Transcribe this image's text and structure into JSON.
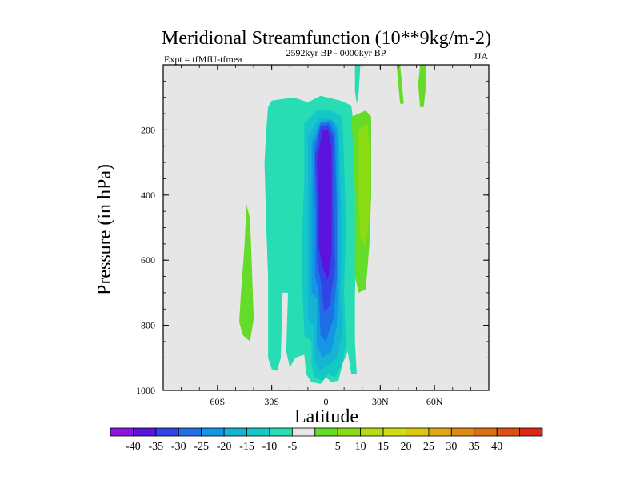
{
  "chart_data": {
    "type": "contour",
    "title": "Meridional Streamfunction (10**9kg/m-2)",
    "left_string": "Expt = tfMfU-tfmea",
    "center_string": "2592kyr BP - 0000kyr BP",
    "right_string": "JJA",
    "xlabel": "Latitude",
    "ylabel": "Pressure (in hPa)",
    "xlim": [
      -90,
      90
    ],
    "ylim": [
      1000,
      0
    ],
    "x_ticks": [
      {
        "value": -60,
        "label": "60S"
      },
      {
        "value": -30,
        "label": "30S"
      },
      {
        "value": 0,
        "label": "0"
      },
      {
        "value": 30,
        "label": "30N"
      },
      {
        "value": 60,
        "label": "60N"
      }
    ],
    "y_ticks": [
      {
        "value": 200,
        "label": "200"
      },
      {
        "value": 400,
        "label": "400"
      },
      {
        "value": 600,
        "label": "600"
      },
      {
        "value": 800,
        "label": "800"
      },
      {
        "value": 1000,
        "label": "1000"
      }
    ],
    "background_color": "#e6e6e6",
    "colorbar": {
      "colors": [
        "#8c14dc",
        "#5a14dc",
        "#3244e6",
        "#1e6ee6",
        "#1496e6",
        "#14b4d2",
        "#14c8c8",
        "#28dcb4",
        "#e6e6e6",
        "#64dc28",
        "#8cdc14",
        "#b4dc14",
        "#d2dc14",
        "#dcc814",
        "#dcaa14",
        "#dc8c14",
        "#dc6e14",
        "#dc5014",
        "#dc2814"
      ],
      "labels": [
        "-40",
        "-35",
        "-30",
        "-25",
        "-20",
        "-15",
        "-10",
        "-5",
        "5",
        "10",
        "15",
        "20",
        "25",
        "30",
        "35",
        "40"
      ]
    },
    "regions": [
      {
        "level": -5,
        "points": [
          [
            -30,
            110
          ],
          [
            -18,
            100
          ],
          [
            -10,
            115
          ],
          [
            -3,
            95
          ],
          [
            8,
            110
          ],
          [
            14,
            125
          ],
          [
            15,
            170
          ],
          [
            16,
            300
          ],
          [
            17,
            500
          ],
          [
            16,
            700
          ],
          [
            16,
            850
          ],
          [
            17,
            950
          ],
          [
            14,
            950
          ],
          [
            12,
            880
          ],
          [
            9,
            920
          ],
          [
            7,
            970
          ],
          [
            3,
            975
          ],
          [
            0,
            960
          ],
          [
            -3,
            980
          ],
          [
            -8,
            975
          ],
          [
            -11,
            950
          ],
          [
            -12,
            890
          ],
          [
            -17,
            900
          ],
          [
            -20,
            930
          ],
          [
            -22,
            880
          ],
          [
            -21,
            700
          ],
          [
            -24,
            700
          ],
          [
            -25,
            900
          ],
          [
            -27,
            940
          ],
          [
            -30,
            935
          ],
          [
            -32,
            900
          ],
          [
            -32,
            650
          ],
          [
            -33,
            500
          ],
          [
            -34,
            300
          ],
          [
            -33,
            200
          ],
          [
            -32,
            130
          ]
        ]
      },
      {
        "level": -5,
        "points": [
          [
            -20,
            250
          ],
          [
            -18,
            210
          ],
          [
            -16,
            240
          ],
          [
            -16,
            400
          ],
          [
            -17,
            500
          ],
          [
            -19,
            480
          ],
          [
            -20,
            380
          ]
        ]
      },
      {
        "level": -5,
        "points": [
          [
            -28,
            350
          ],
          [
            -26,
            320
          ],
          [
            -25,
            420
          ],
          [
            -26,
            520
          ],
          [
            -28,
            500
          ],
          [
            -29,
            420
          ]
        ]
      },
      {
        "level": -5,
        "points": [
          [
            16,
            0
          ],
          [
            19,
            0
          ],
          [
            18,
            90
          ],
          [
            17,
            120
          ],
          [
            16,
            80
          ]
        ]
      },
      {
        "level": -10,
        "points": [
          [
            -12,
            180
          ],
          [
            -5,
            140
          ],
          [
            3,
            140
          ],
          [
            9,
            160
          ],
          [
            10,
            300
          ],
          [
            11,
            500
          ],
          [
            10,
            700
          ],
          [
            11,
            860
          ],
          [
            9,
            920
          ],
          [
            5,
            960
          ],
          [
            1,
            950
          ],
          [
            -2,
            970
          ],
          [
            -6,
            960
          ],
          [
            -8,
            920
          ],
          [
            -8,
            850
          ],
          [
            -12,
            830
          ],
          [
            -13,
            700
          ],
          [
            -13,
            500
          ],
          [
            -12,
            350
          ]
        ]
      },
      {
        "level": -15,
        "points": [
          [
            -10,
            220
          ],
          [
            -4,
            165
          ],
          [
            3,
            165
          ],
          [
            7,
            190
          ],
          [
            8,
            350
          ],
          [
            9,
            550
          ],
          [
            8,
            700
          ],
          [
            9,
            820
          ],
          [
            6,
            900
          ],
          [
            2,
            920
          ],
          [
            -3,
            940
          ],
          [
            -6,
            910
          ],
          [
            -7,
            800
          ],
          [
            -10,
            780
          ],
          [
            -10,
            600
          ],
          [
            -10,
            400
          ]
        ]
      },
      {
        "level": -20,
        "points": [
          [
            -8,
            240
          ],
          [
            -3,
            175
          ],
          [
            3,
            170
          ],
          [
            6,
            200
          ],
          [
            7,
            400
          ],
          [
            7,
            650
          ],
          [
            6,
            800
          ],
          [
            3,
            880
          ],
          [
            -2,
            900
          ],
          [
            -5,
            860
          ],
          [
            -5,
            720
          ],
          [
            -8,
            700
          ],
          [
            -8,
            500
          ]
        ]
      },
      {
        "level": -25,
        "points": [
          [
            -7,
            260
          ],
          [
            -3,
            180
          ],
          [
            2,
            178
          ],
          [
            5,
            210
          ],
          [
            6,
            450
          ],
          [
            6,
            650
          ],
          [
            4,
            780
          ],
          [
            0,
            850
          ],
          [
            -3,
            830
          ],
          [
            -4,
            700
          ],
          [
            -6,
            650
          ],
          [
            -6,
            450
          ]
        ]
      },
      {
        "level": -30,
        "points": [
          [
            -6,
            280
          ],
          [
            -3,
            190
          ],
          [
            1,
            185
          ],
          [
            4,
            220
          ],
          [
            4,
            450
          ],
          [
            5,
            620
          ],
          [
            2,
            740
          ],
          [
            -1,
            760
          ],
          [
            -3,
            660
          ],
          [
            -5,
            600
          ],
          [
            -5,
            420
          ]
        ]
      },
      {
        "level": -35,
        "points": [
          [
            -5,
            300
          ],
          [
            -2,
            200
          ],
          [
            1,
            200
          ],
          [
            3,
            250
          ],
          [
            3,
            450
          ],
          [
            3,
            580
          ],
          [
            1,
            660
          ],
          [
            -2,
            620
          ],
          [
            -4,
            560
          ],
          [
            -4,
            400
          ]
        ]
      },
      {
        "level": 5,
        "points": [
          [
            14,
            160
          ],
          [
            22,
            140
          ],
          [
            25,
            160
          ],
          [
            25,
            400
          ],
          [
            24,
            550
          ],
          [
            22,
            690
          ],
          [
            18,
            700
          ],
          [
            16,
            650
          ],
          [
            16,
            400
          ],
          [
            15,
            250
          ]
        ]
      },
      {
        "level": 5,
        "points": [
          [
            -44,
            430
          ],
          [
            -42,
            470
          ],
          [
            -41,
            620
          ],
          [
            -40,
            780
          ],
          [
            -42,
            850
          ],
          [
            -46,
            830
          ],
          [
            -48,
            790
          ],
          [
            -47,
            700
          ],
          [
            -45,
            550
          ]
        ]
      },
      {
        "level": 5,
        "points": [
          [
            39,
            0
          ],
          [
            41,
            0
          ],
          [
            42,
            60
          ],
          [
            43,
            120
          ],
          [
            41,
            120
          ],
          [
            40,
            60
          ]
        ]
      },
      {
        "level": 5,
        "points": [
          [
            52,
            0
          ],
          [
            55,
            0
          ],
          [
            55,
            80
          ],
          [
            54,
            130
          ],
          [
            52,
            130
          ],
          [
            51,
            60
          ]
        ]
      },
      {
        "level": 10,
        "points": [
          [
            18,
            200
          ],
          [
            23,
            180
          ],
          [
            24,
            260
          ],
          [
            24,
            460
          ],
          [
            22,
            560
          ],
          [
            19,
            530
          ],
          [
            18,
            400
          ]
        ]
      }
    ]
  }
}
